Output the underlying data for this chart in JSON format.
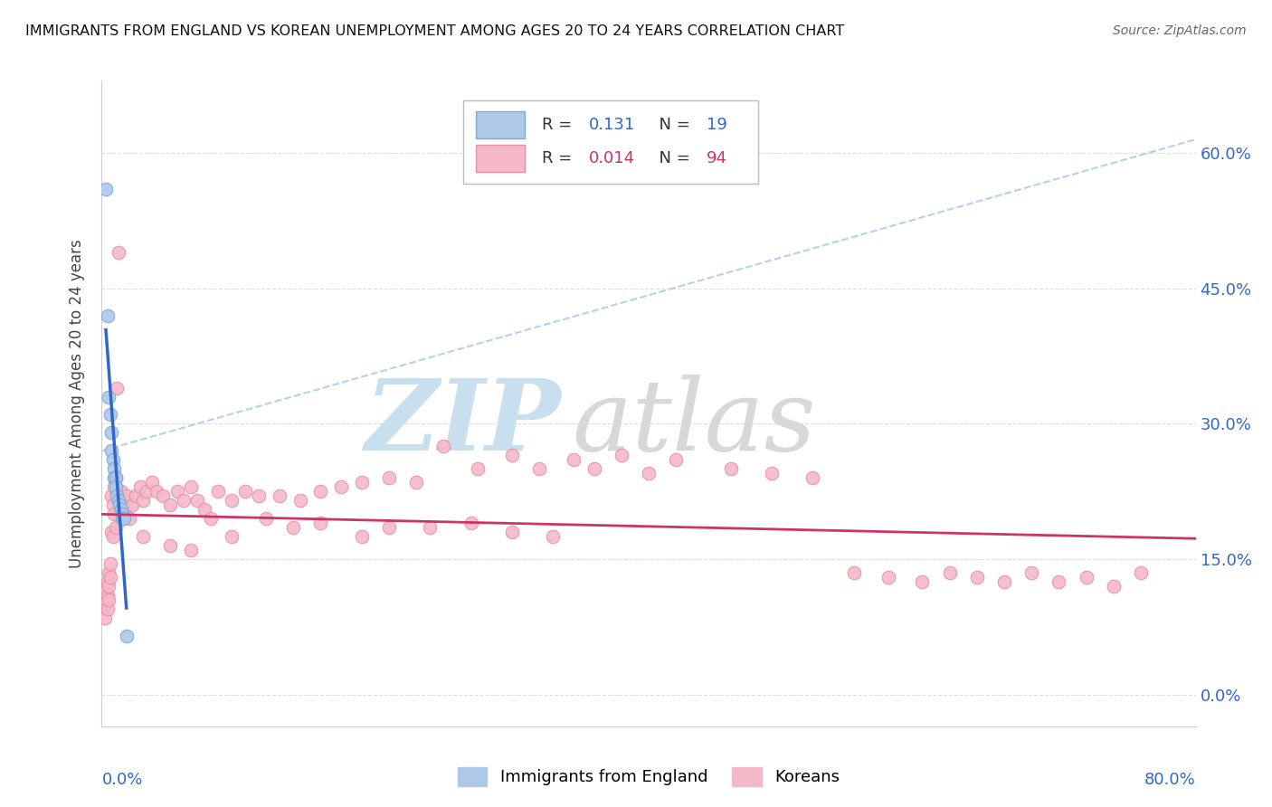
{
  "title": "IMMIGRANTS FROM ENGLAND VS KOREAN UNEMPLOYMENT AMONG AGES 20 TO 24 YEARS CORRELATION CHART",
  "source": "Source: ZipAtlas.com",
  "ylabel": "Unemployment Among Ages 20 to 24 years",
  "yticks_labels": [
    "0.0%",
    "15.0%",
    "30.0%",
    "45.0%",
    "60.0%"
  ],
  "ytick_vals": [
    0.0,
    0.15,
    0.3,
    0.45,
    0.6
  ],
  "xlim": [
    0.0,
    0.8
  ],
  "ylim": [
    -0.035,
    0.68
  ],
  "series1_color": "#adc8e8",
  "series2_color": "#f5b8c8",
  "series1_edge": "#7aaad0",
  "series2_edge": "#e890a8",
  "trend1_color": "#3366cc",
  "trend2_color": "#cc3366",
  "trend_dash_color": "#aaccee",
  "watermark_zip_color": "#c8dff0",
  "watermark_atlas_color": "#d8d8d8",
  "background_color": "#ffffff",
  "legend_box_color": "#f5f5f5",
  "legend_box_edge": "#cccccc",
  "r1_color": "#3366cc",
  "r2_color": "#cc3366",
  "grid_color": "#dddddd",
  "england_x": [
    0.003,
    0.004,
    0.005,
    0.006,
    0.007,
    0.007,
    0.008,
    0.009,
    0.009,
    0.01,
    0.01,
    0.011,
    0.012,
    0.013,
    0.014,
    0.015,
    0.015,
    0.016,
    0.018
  ],
  "england_y": [
    0.56,
    0.42,
    0.33,
    0.31,
    0.29,
    0.27,
    0.26,
    0.25,
    0.24,
    0.24,
    0.23,
    0.22,
    0.215,
    0.21,
    0.205,
    0.2,
    0.195,
    0.195,
    0.065
  ],
  "korea_x": [
    0.001,
    0.001,
    0.002,
    0.002,
    0.002,
    0.003,
    0.003,
    0.004,
    0.004,
    0.004,
    0.005,
    0.005,
    0.005,
    0.006,
    0.006,
    0.007,
    0.007,
    0.008,
    0.008,
    0.009,
    0.009,
    0.01,
    0.01,
    0.011,
    0.012,
    0.013,
    0.014,
    0.015,
    0.016,
    0.017,
    0.018,
    0.02,
    0.022,
    0.025,
    0.028,
    0.03,
    0.033,
    0.037,
    0.04,
    0.045,
    0.05,
    0.055,
    0.06,
    0.065,
    0.07,
    0.075,
    0.085,
    0.095,
    0.105,
    0.115,
    0.13,
    0.145,
    0.16,
    0.175,
    0.19,
    0.21,
    0.23,
    0.25,
    0.275,
    0.3,
    0.32,
    0.345,
    0.36,
    0.38,
    0.4,
    0.42,
    0.46,
    0.49,
    0.52,
    0.55,
    0.575,
    0.6,
    0.62,
    0.64,
    0.66,
    0.68,
    0.7,
    0.72,
    0.74,
    0.76,
    0.03,
    0.05,
    0.065,
    0.08,
    0.095,
    0.12,
    0.14,
    0.16,
    0.19,
    0.21,
    0.24,
    0.27,
    0.3,
    0.33
  ],
  "korea_y": [
    0.11,
    0.095,
    0.12,
    0.1,
    0.085,
    0.115,
    0.105,
    0.125,
    0.11,
    0.095,
    0.135,
    0.12,
    0.105,
    0.145,
    0.13,
    0.22,
    0.18,
    0.21,
    0.175,
    0.23,
    0.2,
    0.24,
    0.185,
    0.34,
    0.49,
    0.215,
    0.225,
    0.215,
    0.205,
    0.215,
    0.22,
    0.195,
    0.21,
    0.22,
    0.23,
    0.215,
    0.225,
    0.235,
    0.225,
    0.22,
    0.21,
    0.225,
    0.215,
    0.23,
    0.215,
    0.205,
    0.225,
    0.215,
    0.225,
    0.22,
    0.22,
    0.215,
    0.225,
    0.23,
    0.235,
    0.24,
    0.235,
    0.275,
    0.25,
    0.265,
    0.25,
    0.26,
    0.25,
    0.265,
    0.245,
    0.26,
    0.25,
    0.245,
    0.24,
    0.135,
    0.13,
    0.125,
    0.135,
    0.13,
    0.125,
    0.135,
    0.125,
    0.13,
    0.12,
    0.135,
    0.175,
    0.165,
    0.16,
    0.195,
    0.175,
    0.195,
    0.185,
    0.19,
    0.175,
    0.185,
    0.185,
    0.19,
    0.18,
    0.175
  ]
}
